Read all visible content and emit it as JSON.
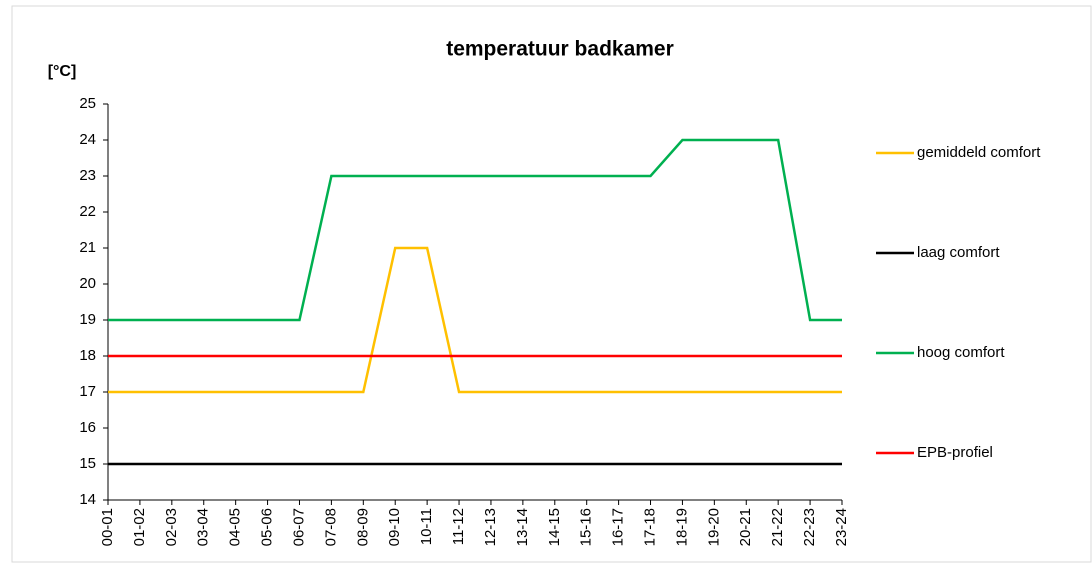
{
  "chart_data": {
    "type": "line",
    "title": "temperatuur badkamer",
    "y_label": "[°C]",
    "categories": [
      "00-01",
      "01-02",
      "02-03",
      "03-04",
      "04-05",
      "05-06",
      "06-07",
      "07-08",
      "08-09",
      "09-10",
      "10-11",
      "11-12",
      "12-13",
      "13-14",
      "14-15",
      "15-16",
      "16-17",
      "17-18",
      "18-19",
      "19-20",
      "20-21",
      "21-22",
      "22-23",
      "23-24"
    ],
    "series": [
      {
        "name": "gemiddeld comfort",
        "color": "#ffc000",
        "values": [
          17,
          17,
          17,
          17,
          17,
          17,
          17,
          17,
          17,
          21,
          21,
          17,
          17,
          17,
          17,
          17,
          17,
          17,
          17,
          17,
          17,
          17,
          17,
          17
        ]
      },
      {
        "name": "laag comfort",
        "color": "#000000",
        "values": [
          15,
          15,
          15,
          15,
          15,
          15,
          15,
          15,
          15,
          15,
          15,
          15,
          15,
          15,
          15,
          15,
          15,
          15,
          15,
          15,
          15,
          15,
          15,
          15
        ]
      },
      {
        "name": "hoog comfort",
        "color": "#00b050",
        "values": [
          19,
          19,
          19,
          19,
          19,
          19,
          19,
          23,
          23,
          23,
          23,
          23,
          23,
          23,
          23,
          23,
          23,
          23,
          24,
          24,
          24,
          24,
          19,
          19
        ]
      },
      {
        "name": "EPB-profiel",
        "color": "#ff0000",
        "values": [
          18,
          18,
          18,
          18,
          18,
          18,
          18,
          18,
          18,
          18,
          18,
          18,
          18,
          18,
          18,
          18,
          18,
          18,
          18,
          18,
          18,
          18,
          18,
          18
        ]
      }
    ],
    "ylim": [
      14,
      25
    ],
    "yticks": [
      14,
      15,
      16,
      17,
      18,
      19,
      20,
      21,
      22,
      23,
      24,
      25
    ],
    "grid": false,
    "legend": "right"
  }
}
